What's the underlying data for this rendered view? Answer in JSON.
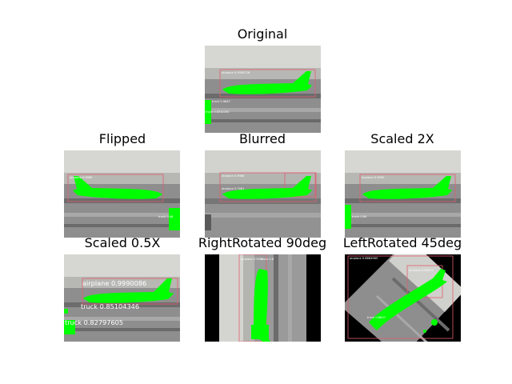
{
  "figure": {
    "panels": [
      {
        "id": "original",
        "title": "Original",
        "detections": [
          "airplane 0.9990726",
          "truck 0.9847",
          "truck 0.8242281"
        ]
      },
      {
        "id": "flipped",
        "title": "Flipped",
        "detections": [
          "airplane 0.9989",
          "truck 0.98"
        ]
      },
      {
        "id": "blurred",
        "title": "Blurred",
        "detections": [
          "airplane 0.9986",
          "airplane 0.7461"
        ]
      },
      {
        "id": "scaled2x",
        "title": "Scaled 2X",
        "detections": [
          "airplane 0.9990",
          "truck 0.84"
        ]
      },
      {
        "id": "scaledhalf",
        "title": "Scaled 0.5X",
        "detections": [
          "airplane 0.9990086",
          "truck 0.85104346",
          "truck 0.82797605"
        ]
      },
      {
        "id": "right90",
        "title": "RightRotated 90deg",
        "detections": [
          "airplane 0.9991",
          "truck 0.8"
        ]
      },
      {
        "id": "left45",
        "title": "LeftRotated 45deg",
        "detections": [
          "airplane 0.8884965",
          "airplane 0.98107",
          "truck 0.8837"
        ]
      }
    ]
  },
  "colors": {
    "mask": "#00ff00",
    "box": "#e06070",
    "sky": "#d4d4d0",
    "ground": "#8e8e8e",
    "background": "#ffffff"
  }
}
